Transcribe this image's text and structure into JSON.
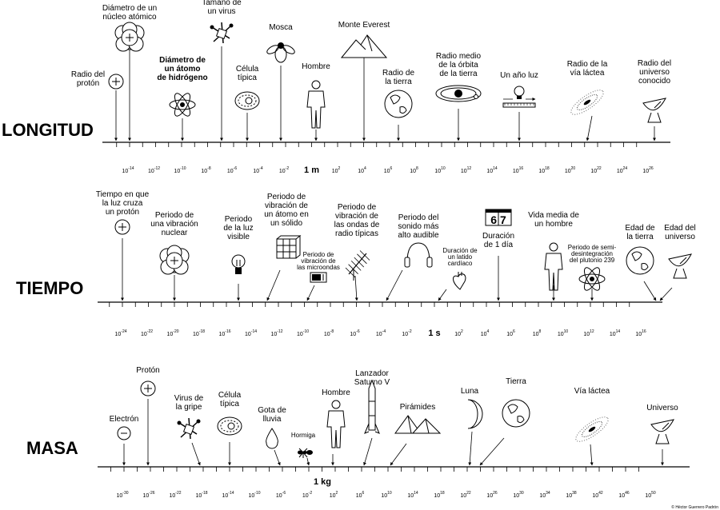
{
  "scales": [
    {
      "key": "length",
      "title": "LONGITUD",
      "unit_label": "1 m",
      "tick_values": [
        "-14",
        "-12",
        "-10",
        "-8",
        "-6",
        "-4",
        "-2",
        "1 m",
        "2",
        "4",
        "6",
        "8",
        "10",
        "12",
        "14",
        "16",
        "18",
        "20",
        "22",
        "24",
        "26"
      ],
      "items": [
        {
          "label": [
            "Radio del",
            "protón"
          ],
          "icon": "proton-icon"
        },
        {
          "label": [
            "Diámetro de un",
            "núcleo atómico"
          ],
          "icon": "nucleus-icon"
        },
        {
          "label": [
            "Diámetro de",
            "un átomo",
            "de hidrógeno"
          ],
          "icon": "atom-icon"
        },
        {
          "label": [
            "Tamaño de",
            "un virus"
          ],
          "icon": "virus-icon"
        },
        {
          "label": [
            "Célula",
            "típica"
          ],
          "icon": "cell-icon"
        },
        {
          "label": [
            "Mosca"
          ],
          "icon": "fly-icon"
        },
        {
          "label": [
            "Hombre"
          ],
          "icon": "man-icon"
        },
        {
          "label": [
            "Monte Everest"
          ],
          "icon": "mountain-icon"
        },
        {
          "label": [
            "Radio de",
            "la tierra"
          ],
          "icon": "earth-icon"
        },
        {
          "label": [
            "Radio medio",
            "de la órbita",
            "de la tierra"
          ],
          "icon": "orbit-icon"
        },
        {
          "label": [
            "Un año luz"
          ],
          "icon": "lightbulb-ruler-icon"
        },
        {
          "label": [
            "Radio de la",
            "vía láctea"
          ],
          "icon": "galaxy-icon"
        },
        {
          "label": [
            "Radio del",
            "universo",
            "conocido"
          ],
          "icon": "radio-telescope-icon"
        }
      ]
    },
    {
      "key": "time",
      "title": "TIEMPO",
      "unit_label": "1 s",
      "tick_values": [
        "-24",
        "-22",
        "-20",
        "-18",
        "-16",
        "-14",
        "-12",
        "-10",
        "-8",
        "-6",
        "-4",
        "-2",
        "1 s",
        "2",
        "4",
        "6",
        "8",
        "10",
        "12",
        "14",
        "16"
      ],
      "items": [
        {
          "label": [
            "Tiempo en que",
            "la luz cruza",
            "un protón"
          ],
          "icon": "proton-icon"
        },
        {
          "label": [
            "Periodo de",
            "una vibración",
            "nuclear"
          ],
          "icon": "nucleus-icon"
        },
        {
          "label": [
            "Periodo",
            "de la luz",
            "visible"
          ],
          "icon": "lightbulb-icon"
        },
        {
          "label": [
            "Periodo de",
            "vibración de",
            "un átomo en",
            "un sólido"
          ],
          "icon": "lattice-icon"
        },
        {
          "label": [
            "Periodo de",
            "vibración de",
            "las microondas"
          ],
          "icon": "microwave-icon"
        },
        {
          "label": [
            "Periodo de",
            "vibración de",
            "las ondas de",
            "radio típicas"
          ],
          "icon": "antenna-icon"
        },
        {
          "label": [
            "Periodo del",
            "sonido más",
            "alto audible"
          ],
          "icon": "headphones-icon"
        },
        {
          "label": [
            "Duración de",
            "un latido",
            "cardíaco"
          ],
          "icon": "heart-icon"
        },
        {
          "label": [
            "Duración",
            "de 1 día"
          ],
          "icon": "calendar-icon",
          "calendar_digits": "67"
        },
        {
          "label": [
            "Vida media de",
            "un hombre"
          ],
          "icon": "man-icon"
        },
        {
          "label": [
            "Periodo de semi-",
            "desintegración",
            "del plutonio 239"
          ],
          "icon": "atom-icon"
        },
        {
          "label": [
            "Edad de",
            "la tierra"
          ],
          "icon": "earth-icon"
        },
        {
          "label": [
            "Edad del",
            "universo"
          ],
          "icon": "radio-telescope-icon"
        }
      ]
    },
    {
      "key": "mass",
      "title": "MASA",
      "unit_label": "1 kg",
      "tick_values": [
        "-30",
        "-26",
        "-22",
        "-18",
        "-14",
        "-10",
        "-6",
        "-2",
        "2",
        "6",
        "10",
        "14",
        "18",
        "22",
        "26",
        "30",
        "34",
        "38",
        "42",
        "46",
        "50"
      ],
      "items": [
        {
          "label": [
            "Electrón"
          ],
          "icon": "electron-icon"
        },
        {
          "label": [
            "Protón"
          ],
          "icon": "proton-icon"
        },
        {
          "label": [
            "Virus de",
            "la gripe"
          ],
          "icon": "virus-icon"
        },
        {
          "label": [
            "Célula",
            "típica"
          ],
          "icon": "cell-icon"
        },
        {
          "label": [
            "Gota de",
            "lluvia"
          ],
          "icon": "drop-icon"
        },
        {
          "label": [
            "Hormiga"
          ],
          "icon": "ant-icon"
        },
        {
          "label": [
            "Hombre"
          ],
          "icon": "man-icon"
        },
        {
          "label": [
            "Lanzador",
            "Saturno V"
          ],
          "icon": "rocket-icon"
        },
        {
          "label": [
            "Pirámides"
          ],
          "icon": "pyramids-icon"
        },
        {
          "label": [
            "Luna"
          ],
          "icon": "moon-icon"
        },
        {
          "label": [
            "Tierra"
          ],
          "icon": "earth-icon"
        },
        {
          "label": [
            "Vía láctea"
          ],
          "icon": "galaxy-icon"
        },
        {
          "label": [
            "Universo"
          ],
          "icon": "radio-telescope-icon"
        }
      ]
    }
  ],
  "credit": "© Héctor Guerrero Padrón"
}
